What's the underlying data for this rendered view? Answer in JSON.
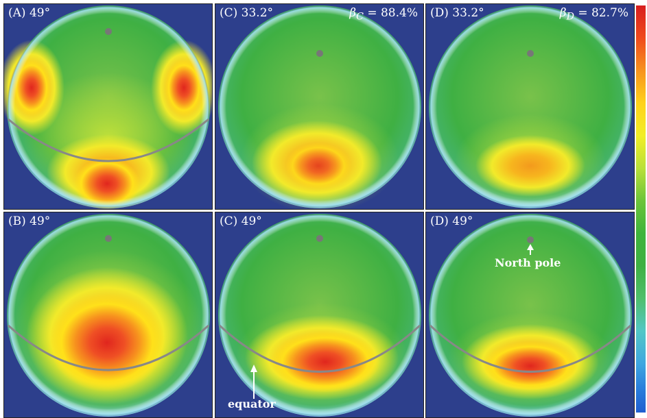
{
  "panels": {
    "A_top": {
      "label": "(A) 49°"
    },
    "C_top": {
      "label": "(C) 33.2°",
      "beta_symbol": "β",
      "beta_sub": "C",
      "beta_rest": " = 88.4%"
    },
    "D_top": {
      "label": "(D) 33.2°",
      "beta_symbol": "β",
      "beta_sub": "D",
      "beta_rest": " = 82.7%"
    },
    "B_bottom": {
      "label": "(B) 49°"
    },
    "C_bottom": {
      "label": "(C) 49°"
    },
    "D_bottom": {
      "label": "(D) 49°"
    }
  },
  "annotations": {
    "equator": "equator",
    "north_pole": "North pole"
  },
  "colors": {
    "background": "#2d3f8c",
    "sphere_base": "#3fb043",
    "hot": "#e0261e",
    "warm": "#f7931e",
    "yellow": "#ffe11a",
    "equator_line": "#888888",
    "pole_dot": "#777777"
  },
  "colorbar": {
    "scale": "red-to-blue"
  }
}
